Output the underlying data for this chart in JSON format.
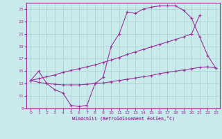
{
  "xlabel": "Windchill (Refroidissement éolien,°C)",
  "bg_color": "#c8eaea",
  "grid_color": "#aed4d4",
  "line_color": "#993399",
  "xlim": [
    -0.5,
    23.5
  ],
  "ylim": [
    9,
    26
  ],
  "xticks": [
    0,
    1,
    2,
    3,
    4,
    5,
    6,
    7,
    8,
    9,
    10,
    11,
    12,
    13,
    14,
    15,
    16,
    17,
    18,
    19,
    20,
    21,
    22,
    23
  ],
  "yticks": [
    9,
    11,
    13,
    15,
    17,
    19,
    21,
    23,
    25
  ],
  "line1_x": [
    0,
    1,
    2,
    3,
    4,
    5,
    6,
    7,
    8,
    9,
    10,
    11,
    12,
    13,
    14,
    15,
    16,
    17,
    18,
    19,
    20,
    21,
    22,
    23
  ],
  "line1_y": [
    13.5,
    15.0,
    13.0,
    12.0,
    11.5,
    9.5,
    9.3,
    9.5,
    13.0,
    14.0,
    19.0,
    21.0,
    24.5,
    24.3,
    25.0,
    25.3,
    25.5,
    25.5,
    25.5,
    24.8,
    23.5,
    20.5,
    17.5,
    15.5
  ],
  "line2_x": [
    0,
    1,
    2,
    3,
    4,
    5,
    6,
    7,
    8,
    9,
    10,
    11,
    12,
    13,
    14,
    15,
    16,
    17,
    18,
    19,
    20,
    21
  ],
  "line2_y": [
    13.5,
    13.8,
    14.1,
    14.4,
    14.8,
    15.1,
    15.4,
    15.7,
    16.0,
    16.4,
    16.8,
    17.2,
    17.7,
    18.1,
    18.5,
    18.9,
    19.3,
    19.7,
    20.1,
    20.5,
    21.0,
    24.0
  ],
  "line3_x": [
    0,
    1,
    2,
    3,
    4,
    5,
    6,
    7,
    8,
    9,
    10,
    11,
    12,
    13,
    14,
    15,
    16,
    17,
    18,
    19,
    20,
    21,
    22,
    23
  ],
  "line3_y": [
    13.5,
    13.2,
    13.0,
    12.9,
    12.8,
    12.8,
    12.8,
    12.9,
    13.0,
    13.1,
    13.3,
    13.5,
    13.7,
    13.9,
    14.1,
    14.3,
    14.6,
    14.8,
    15.0,
    15.2,
    15.4,
    15.6,
    15.7,
    15.5
  ]
}
